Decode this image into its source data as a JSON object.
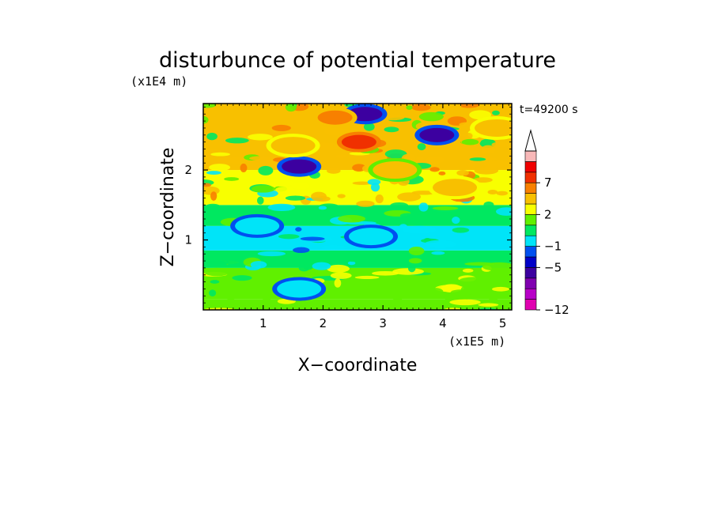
{
  "chart_data": {
    "type": "heatmap",
    "title": "disturbunce of potential temperature",
    "time_label": "t=49200 s",
    "xlabel": "X−coordinate",
    "ylabel": "Z−coordinate",
    "x_unit": "(x1E5 m)",
    "y_unit": "(x1E4 m)",
    "xlim": [
      0,
      5.15
    ],
    "ylim": [
      0,
      2.95
    ],
    "x_ticks": [
      1,
      2,
      3,
      4,
      5
    ],
    "y_ticks": [
      1,
      2
    ],
    "colorbar": {
      "levels": [
        -12,
        -11,
        -9,
        -7,
        -5,
        -3,
        -1,
        0,
        1,
        2,
        3,
        5,
        7,
        9,
        11
      ],
      "labeled_ticks": [
        "−12",
        "−5",
        "−1",
        "2",
        "7"
      ],
      "colors": [
        "#e000b0",
        "#b800c8",
        "#8000b0",
        "#3c00a0",
        "#0000c8",
        "#0050f0",
        "#00e4f8",
        "#00e860",
        "#60f000",
        "#f8ff00",
        "#f8c000",
        "#f88000",
        "#f03000",
        "#f00000",
        "#f8b8b8"
      ],
      "extend": "max"
    },
    "bands": [
      {
        "z_range": [
          0.0,
          0.15
        ],
        "value": 1.5
      },
      {
        "z_range": [
          0.15,
          0.6
        ],
        "value": 1.8
      },
      {
        "z_range": [
          0.6,
          0.85
        ],
        "value": 0.5
      },
      {
        "z_range": [
          0.85,
          1.2
        ],
        "value": -0.5
      },
      {
        "z_range": [
          1.2,
          1.5
        ],
        "value": 0.5
      },
      {
        "z_range": [
          1.5,
          2.0
        ],
        "value": 2.5
      },
      {
        "z_range": [
          2.0,
          2.95
        ],
        "value": 3.0
      }
    ],
    "features": [
      {
        "x": 2.7,
        "z": 2.8,
        "value": -6
      },
      {
        "x": 3.9,
        "z": 2.5,
        "value": -7
      },
      {
        "x": 1.6,
        "z": 2.05,
        "value": -6
      },
      {
        "x": 2.2,
        "z": 2.75,
        "value": 5
      },
      {
        "x": 2.6,
        "z": 2.4,
        "value": 8
      },
      {
        "x": 1.5,
        "z": 2.35,
        "value": 4
      },
      {
        "x": 4.9,
        "z": 2.6,
        "value": 4
      },
      {
        "x": 4.2,
        "z": 1.75,
        "value": 4
      },
      {
        "x": 3.2,
        "z": 2.0,
        "value": 3
      },
      {
        "x": 1.6,
        "z": 0.3,
        "value": -1
      },
      {
        "x": 2.8,
        "z": 1.05,
        "value": -1
      },
      {
        "x": 0.9,
        "z": 1.2,
        "value": -1
      }
    ]
  }
}
